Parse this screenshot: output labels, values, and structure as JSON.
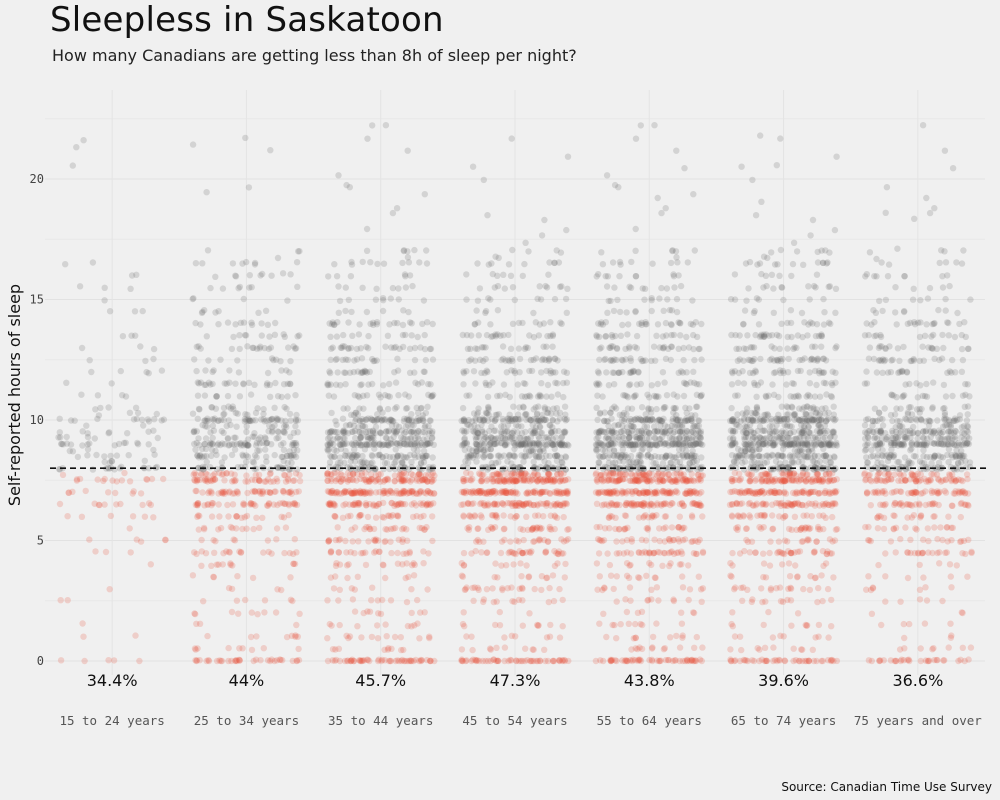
{
  "title": "Sleepless in Saskatoon",
  "subtitle": "How many Canadians are getting less than 8h of sleep per night?",
  "caption": "Source: Canadian Time Use Survey",
  "chart_data": {
    "type": "scatter",
    "ylabel": "Self-reported hours of sleep",
    "xlabel": "",
    "ylim": [
      -0.6,
      24
    ],
    "yticks": [
      "0",
      "5",
      "10",
      "15",
      "20"
    ],
    "ytick_values": [
      0,
      5,
      10,
      15,
      20
    ],
    "threshold": 8,
    "grid": true,
    "categories": [
      "15 to 24 years",
      "25 to 34 years",
      "35 to 44 years",
      "45 to 54 years",
      "55 to 64 years",
      "65 to 74 years",
      "75 years and over"
    ],
    "percent_labels": [
      "34.4%",
      "44%",
      "45.7%",
      "47.3%",
      "43.8%",
      "39.6%",
      "36.6%"
    ],
    "percent_below": [
      0.344,
      0.44,
      0.457,
      0.473,
      0.438,
      0.396,
      0.366
    ],
    "approx_counts": [
      180,
      700,
      1100,
      1200,
      1300,
      1250,
      850
    ],
    "colors": {
      "below": "#e8553f",
      "above": "#6e6e6e",
      "threshold_line": "#111111",
      "background": "#f0f0f0"
    }
  }
}
